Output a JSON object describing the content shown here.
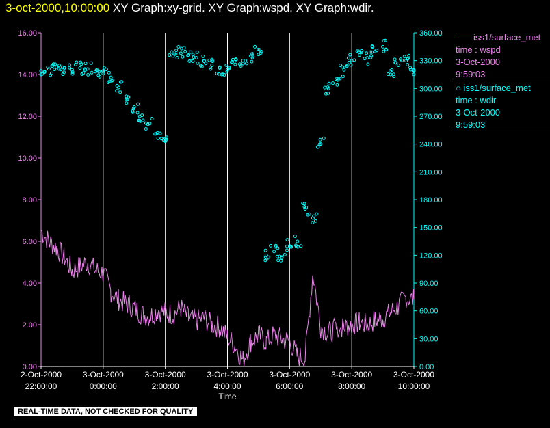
{
  "header": {
    "timestamp": "3-oct-2000,10:00:00",
    "graph_titles": "XY Graph:xy-grid.  XY Graph:wspd.  XY Graph:wdir."
  },
  "legend": [
    {
      "marker": "line",
      "color": "#ee82ee",
      "source": "iss1/surface_met",
      "variable": "time : wspd",
      "date": "3-Oct-2000",
      "time": "9:59:03"
    },
    {
      "marker": "circle",
      "color": "#00ffff",
      "source": "iss1/surface_met",
      "variable": "time : wdir",
      "date": "3-Oct-2000",
      "time": "9:59:03"
    }
  ],
  "quality_note": "REAL-TIME DATA, NOT CHECKED FOR QUALITY",
  "chart_data": {
    "type": "line",
    "xlabel": "Time",
    "x_range": [
      "2-Oct-2000 22:00:00",
      "3-Oct-2000 10:00:00"
    ],
    "x_ticks": [
      {
        "date": "2-Oct-2000",
        "time": "22:00:00"
      },
      {
        "date": "3-Oct-2000",
        "time": "0:00:00"
      },
      {
        "date": "3-Oct-2000",
        "time": "2:00:00"
      },
      {
        "date": "3-Oct-2000",
        "time": "4:00:00"
      },
      {
        "date": "3-Oct-2000",
        "time": "6:00:00"
      },
      {
        "date": "3-Oct-2000",
        "time": "8:00:00"
      },
      {
        "date": "3-Oct-2000",
        "time": "10:00:00"
      }
    ],
    "left_axis": {
      "ylim": [
        0,
        16
      ],
      "ticks": [
        "0.00",
        "2.00",
        "4.00",
        "6.00",
        "8.00",
        "10.00",
        "12.00",
        "14.00",
        "16.00"
      ],
      "color": "#ee82ee"
    },
    "right_axis": {
      "ylim": [
        0,
        360
      ],
      "ticks": [
        "0.00",
        "30.00",
        "60.00",
        "90.00",
        "120.00",
        "150.00",
        "180.00",
        "210.00",
        "240.00",
        "270.00",
        "300.00",
        "330.00",
        "360.00"
      ],
      "color": "#00ffff"
    },
    "grid": "vertical",
    "series": [
      {
        "name": "iss1/surface_met time : wspd",
        "type": "line",
        "axis": "left",
        "color": "#ee82ee",
        "x_hours": [
          0,
          0.25,
          0.5,
          0.75,
          1,
          1.25,
          1.5,
          1.75,
          2,
          2.25,
          2.5,
          2.75,
          3,
          3.25,
          3.5,
          3.75,
          4,
          4.25,
          4.5,
          4.75,
          5,
          5.25,
          5.5,
          5.75,
          6,
          6.25,
          6.5,
          6.75,
          7,
          7.25,
          7.5,
          7.75,
          8,
          8.25,
          8.5,
          8.75,
          9,
          9.25,
          9.5,
          9.75,
          10,
          10.25,
          10.5,
          10.75,
          11,
          11.25,
          11.5,
          11.75,
          12
        ],
        "values": [
          6.5,
          6.0,
          5.7,
          5.2,
          4.6,
          4.8,
          5.0,
          4.6,
          4.5,
          3.6,
          3.2,
          3.0,
          2.8,
          2.5,
          2.4,
          2.7,
          2.6,
          2.5,
          2.8,
          2.3,
          2.2,
          2.3,
          2.0,
          1.9,
          1.4,
          1.0,
          0.3,
          1.2,
          1.5,
          1.2,
          1.5,
          1.3,
          1.2,
          0.5,
          0.4,
          4.5,
          1.9,
          1.6,
          1.8,
          1.5,
          1.9,
          1.7,
          1.8,
          1.9,
          1.7,
          2.0,
          2.0,
          1.9,
          2.2
        ],
        "extra_x_hours": [
          9.5,
          9.75,
          10,
          10.25,
          10.5,
          10.75,
          11,
          11.25,
          11.5,
          11.75,
          12
        ],
        "extra_values": [
          1.8,
          1.9,
          2.0,
          2.1,
          2.0,
          2.2,
          2.3,
          2.6,
          2.9,
          3.3,
          3.2
        ]
      },
      {
        "name": "iss1/surface_met time : wdir",
        "type": "scatter",
        "axis": "right",
        "color": "#00ffff",
        "x_hours": [
          0,
          0.25,
          0.5,
          0.75,
          1,
          1.25,
          1.5,
          1.75,
          2,
          2.25,
          2.5,
          2.75,
          3,
          3.25,
          3.5,
          3.75,
          4,
          4.25,
          4.5,
          4.75,
          5,
          5.25,
          5.5,
          5.75,
          6,
          6.25,
          6.5,
          6.75,
          7,
          7.25,
          7.5,
          7.75,
          8,
          8.25,
          8.5,
          8.75,
          9,
          9.25,
          9.5,
          9.75,
          10,
          10.25,
          10.5,
          10.75,
          11,
          11.25,
          11.5,
          11.75,
          12
        ],
        "values": [
          319,
          321,
          323,
          322,
          320,
          322,
          321,
          318,
          316,
          312,
          301,
          288,
          280,
          271,
          262,
          252,
          243,
          335,
          338,
          336,
          333,
          330,
          325,
          322,
          320,
          326,
          330,
          335,
          342,
          120,
          124,
          118,
          130,
          135,
          170,
          160,
          240,
          300,
          310,
          320,
          330,
          336,
          333,
          340,
          345,
          315,
          325,
          330,
          320
        ]
      }
    ]
  }
}
